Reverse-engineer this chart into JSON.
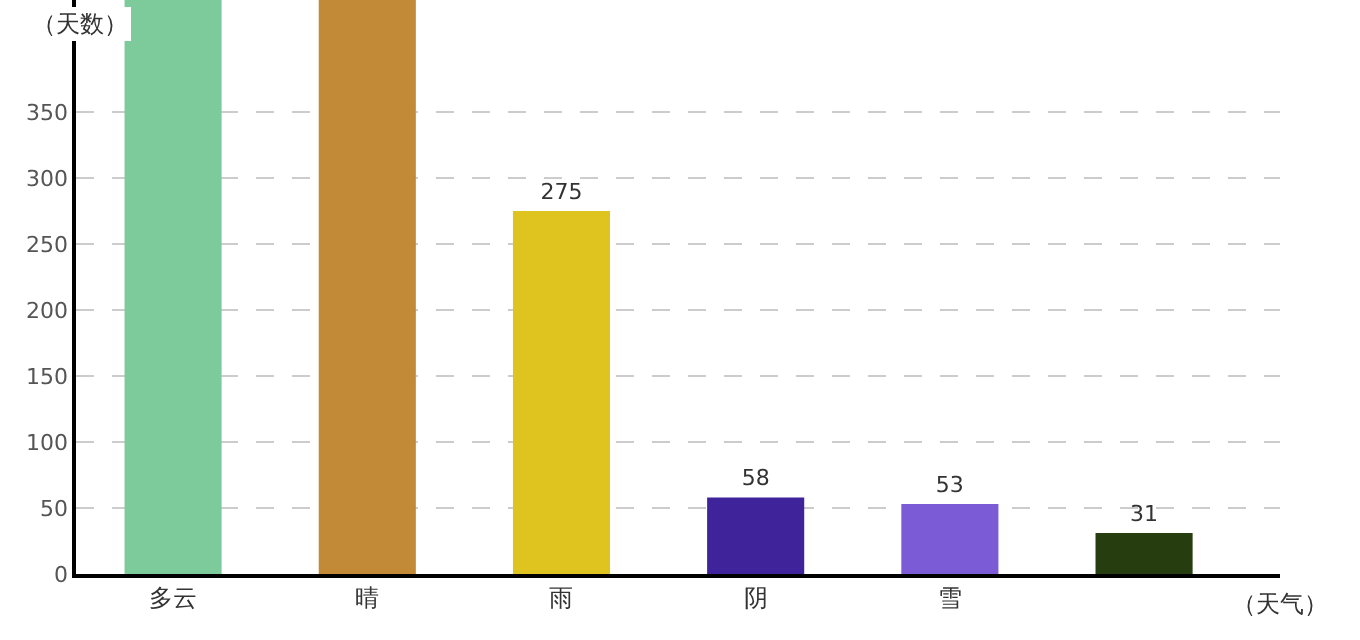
{
  "chart_data": {
    "type": "bar",
    "xlabel": "（天气）",
    "ylabel": "（天数）",
    "categories": [
      "多云",
      "晴",
      "雨",
      "阴",
      "雪",
      null
    ],
    "values": [
      435,
      435,
      275,
      58,
      53,
      31
    ],
    "value_labels": [
      null,
      null,
      "275",
      "58",
      "53",
      "31"
    ],
    "colors": [
      "#7dcb9b",
      "#c28a36",
      "#dfc420",
      "#3f239a",
      "#7b5bd6",
      "#263d0f"
    ],
    "ylim": [
      0,
      435
    ],
    "yticks": [
      0,
      50,
      100,
      150,
      200,
      250,
      300,
      350
    ],
    "grid": "y"
  }
}
